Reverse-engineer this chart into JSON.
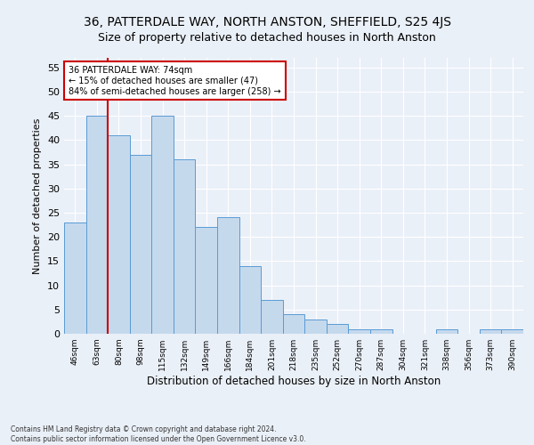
{
  "title": "36, PATTERDALE WAY, NORTH ANSTON, SHEFFIELD, S25 4JS",
  "subtitle": "Size of property relative to detached houses in North Anston",
  "xlabel": "Distribution of detached houses by size in North Anston",
  "ylabel": "Number of detached properties",
  "footer_line1": "Contains HM Land Registry data © Crown copyright and database right 2024.",
  "footer_line2": "Contains public sector information licensed under the Open Government Licence v3.0.",
  "categories": [
    "46sqm",
    "63sqm",
    "80sqm",
    "98sqm",
    "115sqm",
    "132sqm",
    "149sqm",
    "166sqm",
    "184sqm",
    "201sqm",
    "218sqm",
    "235sqm",
    "252sqm",
    "270sqm",
    "287sqm",
    "304sqm",
    "321sqm",
    "338sqm",
    "356sqm",
    "373sqm",
    "390sqm"
  ],
  "values": [
    23,
    45,
    41,
    37,
    45,
    36,
    22,
    24,
    14,
    7,
    4,
    3,
    2,
    1,
    1,
    0,
    0,
    1,
    0,
    1,
    1
  ],
  "bar_color": "#c5d9ed",
  "bar_edge_color": "#5a9bd4",
  "vline_x": 1.5,
  "vline_color": "#cc0000",
  "annotation_text": "36 PATTERDALE WAY: 74sqm\n← 15% of detached houses are smaller (47)\n84% of semi-detached houses are larger (258) →",
  "annotation_box_color": "#ffffff",
  "annotation_box_edge": "#cc0000",
  "ylim": [
    0,
    57
  ],
  "yticks": [
    0,
    5,
    10,
    15,
    20,
    25,
    30,
    35,
    40,
    45,
    50,
    55
  ],
  "bg_color": "#eaf0f8",
  "plot_bg_color": "#eaf0f8",
  "grid_color": "#ffffff",
  "title_fontsize": 10,
  "subtitle_fontsize": 9
}
